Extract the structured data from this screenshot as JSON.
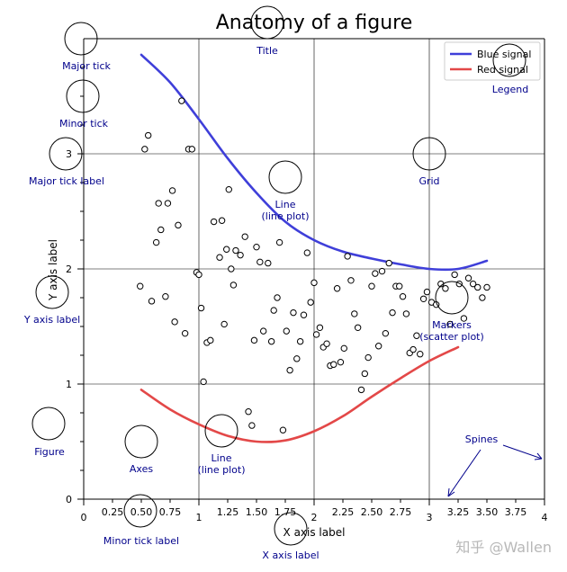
{
  "chart_data": {
    "type": "line",
    "title": "Anatomy of a figure",
    "xlabel": "X axis label",
    "ylabel": "Y axis label",
    "xlim": [
      0,
      4
    ],
    "ylim": [
      0,
      4
    ],
    "grid": true,
    "legend_position": "top-right",
    "major_xticks": [
      {
        "value": 0,
        "label": "0"
      },
      {
        "value": 1,
        "label": "1"
      },
      {
        "value": 2,
        "label": "2"
      },
      {
        "value": 3,
        "label": "3"
      },
      {
        "value": 4,
        "label": "4"
      }
    ],
    "minor_xticks": [
      {
        "value": 0.25,
        "label": "0.25"
      },
      {
        "value": 0.5,
        "label": "0.50"
      },
      {
        "value": 0.75,
        "label": "0.75"
      },
      {
        "value": 1.25,
        "label": "1.25"
      },
      {
        "value": 1.5,
        "label": "1.50"
      },
      {
        "value": 1.75,
        "label": "1.75"
      },
      {
        "value": 2.25,
        "label": "2.25"
      },
      {
        "value": 2.5,
        "label": "2.50"
      },
      {
        "value": 2.75,
        "label": "2.75"
      },
      {
        "value": 3.25,
        "label": "3.25"
      },
      {
        "value": 3.5,
        "label": "3.50"
      },
      {
        "value": 3.75,
        "label": "3.75"
      }
    ],
    "major_yticks": [
      {
        "value": 0,
        "label": "0"
      },
      {
        "value": 1,
        "label": "1"
      },
      {
        "value": 2,
        "label": "2"
      },
      {
        "value": 3,
        "label": "3"
      }
    ],
    "minor_yticks": [
      0.25,
      0.5,
      0.75,
      1.25,
      1.5,
      1.75,
      2.25,
      2.5,
      2.75,
      3.25,
      3.5,
      3.75
    ],
    "series": [
      {
        "name": "Blue signal",
        "color": "#3f3fd9",
        "x": [
          0.5,
          0.75,
          1.0,
          1.25,
          1.5,
          1.75,
          2.0,
          2.25,
          2.5,
          2.75,
          3.0,
          3.25,
          3.5
        ],
        "y": [
          3.86,
          3.62,
          3.3,
          2.96,
          2.66,
          2.41,
          2.25,
          2.15,
          2.09,
          2.04,
          2.0,
          2.0,
          2.07
        ]
      },
      {
        "name": "Red signal",
        "color": "#e34848",
        "x": [
          0.5,
          0.75,
          1.0,
          1.25,
          1.5,
          1.75,
          2.0,
          2.25,
          2.5,
          2.75,
          3.0,
          3.25
        ],
        "y": [
          0.95,
          0.78,
          0.65,
          0.55,
          0.5,
          0.51,
          0.59,
          0.72,
          0.89,
          1.05,
          1.2,
          1.32
        ]
      },
      {
        "name": "scatter",
        "type": "scatter",
        "x": [
          0.49,
          0.53,
          0.56,
          0.59,
          0.63,
          0.65,
          0.67,
          0.71,
          0.73,
          0.77,
          0.79,
          0.82,
          0.85,
          0.88,
          0.91,
          0.94,
          0.98,
          1.0,
          1.02,
          1.04,
          1.07,
          1.1,
          1.13,
          1.18,
          1.2,
          1.22,
          1.24,
          1.26,
          1.28,
          1.3,
          1.32,
          1.36,
          1.4,
          1.43,
          1.46,
          1.48,
          1.5,
          1.53,
          1.56,
          1.6,
          1.63,
          1.65,
          1.68,
          1.7,
          1.73,
          1.76,
          1.79,
          1.82,
          1.85,
          1.88,
          1.91,
          1.94,
          1.97,
          2.0,
          2.02,
          2.05,
          2.08,
          2.11,
          2.14,
          2.17,
          2.2,
          2.23,
          2.26,
          2.29,
          2.32,
          2.35,
          2.38,
          2.41,
          2.44,
          2.47,
          2.5,
          2.53,
          2.56,
          2.59,
          2.62,
          2.65,
          2.68,
          2.71,
          2.74,
          2.77,
          2.8,
          2.83,
          2.86,
          2.89,
          2.92,
          2.95,
          2.98,
          3.02,
          3.06,
          3.1,
          3.14,
          3.18,
          3.22,
          3.26,
          3.3,
          3.34,
          3.38,
          3.42,
          3.46,
          3.5
        ],
        "y": [
          1.85,
          3.04,
          3.16,
          1.72,
          2.23,
          2.57,
          2.34,
          1.76,
          2.57,
          2.68,
          1.54,
          2.38,
          3.46,
          1.44,
          3.04,
          3.04,
          1.97,
          1.95,
          1.66,
          1.02,
          1.36,
          1.38,
          2.41,
          2.1,
          2.42,
          1.52,
          2.17,
          2.69,
          2.0,
          1.86,
          2.16,
          2.12,
          2.28,
          0.76,
          0.64,
          1.38,
          2.19,
          2.06,
          1.46,
          2.05,
          1.37,
          1.64,
          1.75,
          2.23,
          0.6,
          1.46,
          1.12,
          1.62,
          1.22,
          1.37,
          1.6,
          2.14,
          1.71,
          1.88,
          1.43,
          1.49,
          1.32,
          1.35,
          1.16,
          1.17,
          1.83,
          1.19,
          1.31,
          2.11,
          1.9,
          1.61,
          1.49,
          0.95,
          1.09,
          1.23,
          1.85,
          1.96,
          1.33,
          1.98,
          1.44,
          2.05,
          1.62,
          1.85,
          1.85,
          1.76,
          1.61,
          1.27,
          1.3,
          1.42,
          1.26,
          1.74,
          1.8,
          1.71,
          1.69,
          1.87,
          1.83,
          1.52,
          1.95,
          1.87,
          1.57,
          1.92,
          1.87,
          1.84,
          1.75,
          1.84
        ]
      }
    ]
  },
  "annotations": {
    "major_tick": "Major tick",
    "minor_tick": "Minor tick",
    "major_tick_label": "Major tick label",
    "y_axis_label": "Y axis label",
    "figure": "Figure",
    "axes": "Axes",
    "line_plot_top": [
      "Line",
      "(line plot)"
    ],
    "line_plot_bottom": [
      "Line",
      "(line plot)"
    ],
    "grid": "Grid",
    "title": "Title",
    "legend": "Legend",
    "markers": [
      "Markers",
      "(scatter plot)"
    ],
    "spines": "Spines",
    "minor_tick_label": "Minor tick label",
    "x_axis_label": "X axis label"
  },
  "watermark": "知乎 @Wallen",
  "colors": {
    "annotation": "#00008b",
    "blue": "#3f3fd9",
    "red": "#e34848"
  }
}
